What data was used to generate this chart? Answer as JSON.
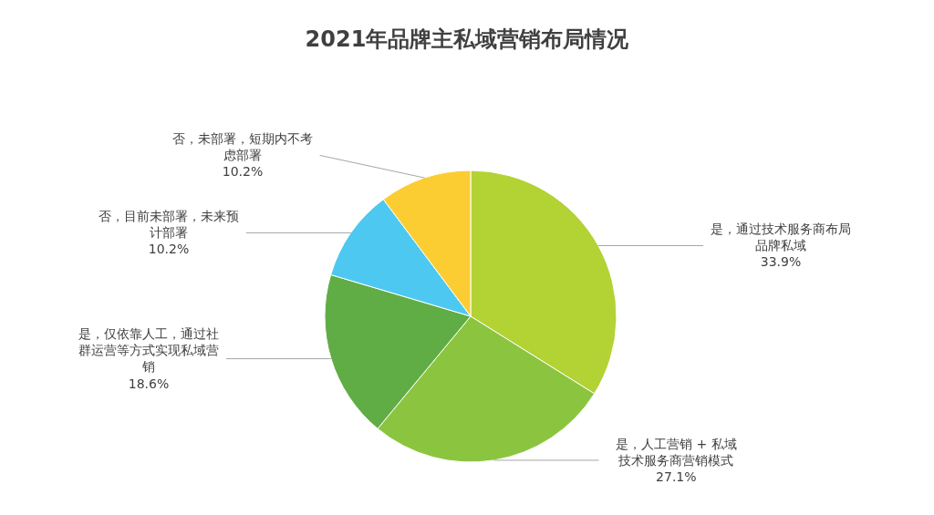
{
  "chart_data": {
    "type": "pie",
    "title": "2021年品牌主私域营销布局情况",
    "categories": [
      "是，通过技术服务商布局品牌私域",
      "是，人工营销 + 私域技术服务商营销模式",
      "是，仅依靠人工，通过社群运营等方式实现私域营销",
      "否，目前未部署，未来预计部署",
      "否，未部署，短期内不考虑部署"
    ],
    "values": [
      33.9,
      27.1,
      18.6,
      10.2,
      10.2
    ],
    "value_labels": [
      "33.9%",
      "27.1%",
      "18.6%",
      "10.2%",
      "10.2%"
    ],
    "colors": [
      "#b3d234",
      "#8bc540",
      "#61ad45",
      "#4dc8f1",
      "#fbcd33"
    ],
    "legend": false
  }
}
